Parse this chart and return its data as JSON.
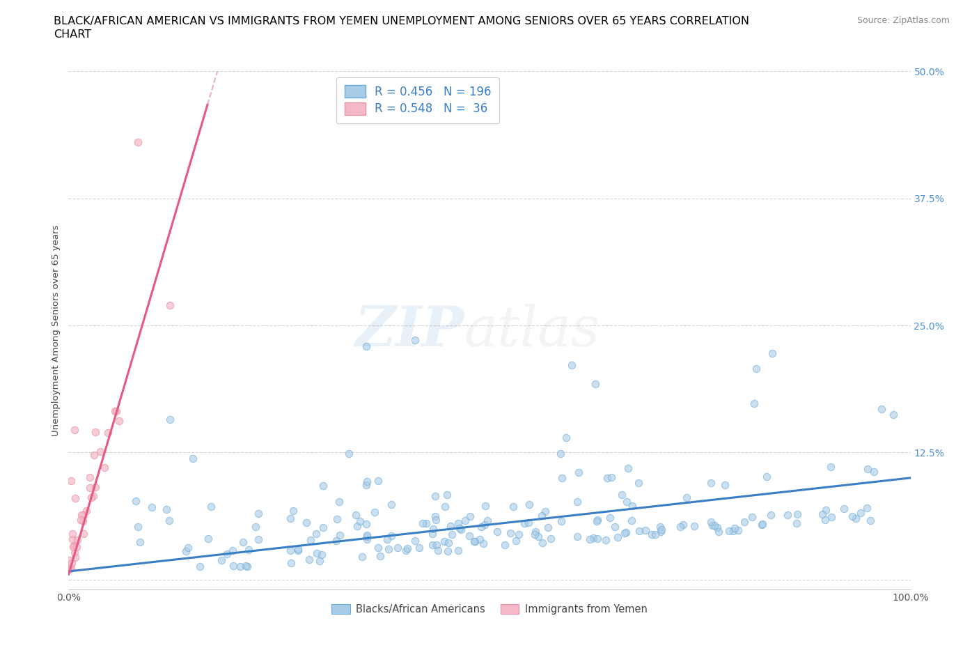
{
  "title_line1": "BLACK/AFRICAN AMERICAN VS IMMIGRANTS FROM YEMEN UNEMPLOYMENT AMONG SENIORS OVER 65 YEARS CORRELATION",
  "title_line2": "CHART",
  "source": "Source: ZipAtlas.com",
  "ylabel": "Unemployment Among Seniors over 65 years",
  "xlim": [
    0,
    1.0
  ],
  "ylim": [
    -0.01,
    0.5
  ],
  "x_ticks": [
    0.0,
    0.1,
    0.2,
    0.3,
    0.4,
    0.5,
    0.6,
    0.7,
    0.8,
    0.9,
    1.0
  ],
  "x_tick_labels": [
    "0.0%",
    "",
    "",
    "",
    "",
    "",
    "",
    "",
    "",
    "",
    "100.0%"
  ],
  "y_ticks": [
    0.0,
    0.125,
    0.25,
    0.375,
    0.5
  ],
  "y_tick_labels": [
    "",
    "12.5%",
    "25.0%",
    "37.5%",
    "50.0%"
  ],
  "blue_R": 0.456,
  "blue_N": 196,
  "pink_R": 0.548,
  "pink_N": 36,
  "blue_scatter_color": "#a8cce8",
  "blue_scatter_edge": "#6aaad4",
  "pink_scatter_color": "#f4b8c8",
  "pink_scatter_edge": "#e890a8",
  "blue_line_color": "#3a7fc4",
  "pink_line_color": "#e85880",
  "pink_dash_color": "#e8b0c0",
  "grid_color": "#d0d0d0",
  "watermark_zip_color": "#5090d0",
  "watermark_atlas_color": "#b0b8c8",
  "legend_label_blue": "Blacks/African Americans",
  "legend_label_pink": "Immigrants from Yemen",
  "title_fontsize": 11.5,
  "axis_label_fontsize": 9.5,
  "tick_fontsize": 10,
  "source_fontsize": 9,
  "legend_fontsize": 12
}
